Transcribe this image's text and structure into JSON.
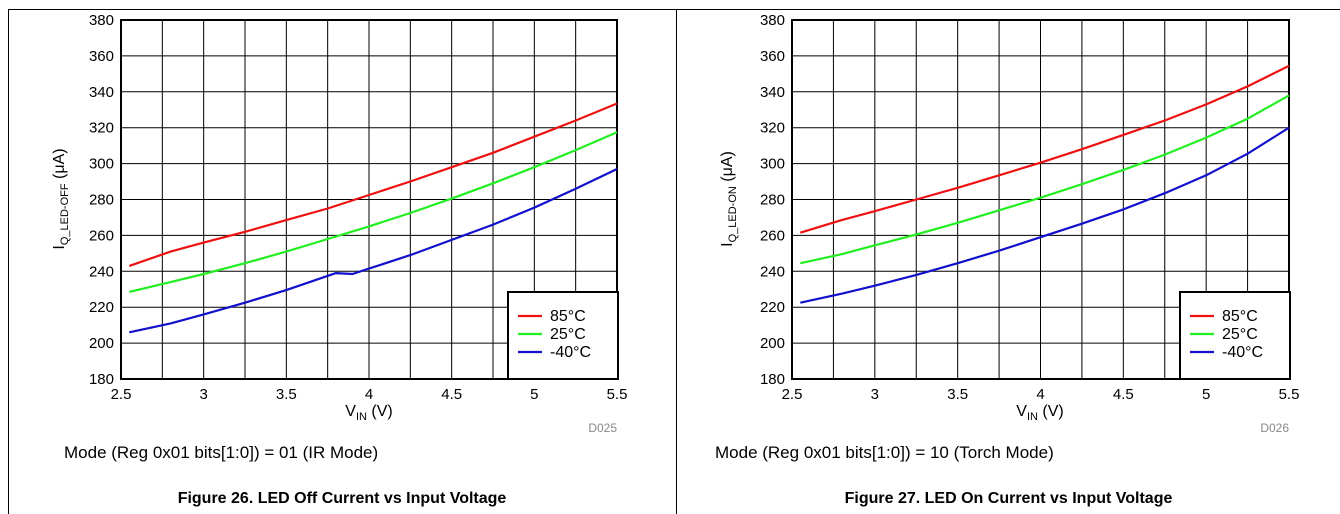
{
  "colors": {
    "red": "#ee1111",
    "green": "#22ee22",
    "blue": "#1111cc",
    "grid": "#000000"
  },
  "charts": [
    {
      "mode_text": "Mode (Reg 0x01 bits[1:0]) = 01 (IR Mode)",
      "caption": "Figure 26. LED Off Current vs Input Voltage",
      "code": "D025",
      "chart_data": {
        "type": "line",
        "xlabel_main": "V",
        "xlabel_sub": "IN",
        "xlabel_unit": " (V)",
        "ylabel_main": "I",
        "ylabel_sub": "Q_LED-OFF",
        "ylabel_unit": " (μA)",
        "xlim": [
          2.5,
          5.5
        ],
        "ylim": [
          180,
          380
        ],
        "x_ticks": [
          2.5,
          3,
          3.5,
          4,
          4.5,
          5,
          5.5
        ],
        "x_tick_labels": [
          "2.5",
          "3",
          "3.5",
          "4",
          "4.5",
          "5",
          "5.5"
        ],
        "y_ticks": [
          180,
          200,
          220,
          240,
          260,
          280,
          300,
          320,
          340,
          360,
          380
        ],
        "y_tick_labels": [
          "180",
          "200",
          "220",
          "240",
          "260",
          "280",
          "300",
          "320",
          "340",
          "360",
          "380"
        ],
        "grid_x": [
          2.5,
          2.75,
          3,
          3.25,
          3.5,
          3.75,
          4,
          4.25,
          4.5,
          4.75,
          5,
          5.25,
          5.5
        ],
        "grid_y": [
          180,
          200,
          220,
          240,
          260,
          280,
          300,
          320,
          340,
          360,
          380
        ],
        "legend_position": "bottom-right",
        "series": [
          {
            "name": "85°C",
            "color": "#ee1111",
            "points": [
              [
                2.55,
                243
              ],
              [
                2.8,
                251
              ],
              [
                3,
                256
              ],
              [
                3.25,
                262
              ],
              [
                3.5,
                268.5
              ],
              [
                3.75,
                275
              ],
              [
                4,
                282.5
              ],
              [
                4.25,
                290
              ],
              [
                4.5,
                298
              ],
              [
                4.75,
                306
              ],
              [
                5,
                315
              ],
              [
                5.25,
                324
              ],
              [
                5.5,
                333.5
              ]
            ]
          },
          {
            "name": "25°C",
            "color": "#22ee22",
            "points": [
              [
                2.55,
                228.5
              ],
              [
                2.8,
                234
              ],
              [
                3,
                238.5
              ],
              [
                3.25,
                244.5
              ],
              [
                3.5,
                251
              ],
              [
                3.75,
                258
              ],
              [
                4,
                265
              ],
              [
                4.25,
                272.5
              ],
              [
                4.5,
                280.5
              ],
              [
                4.75,
                289
              ],
              [
                5,
                298
              ],
              [
                5.25,
                307.5
              ],
              [
                5.5,
                317.5
              ]
            ]
          },
          {
            "name": "-40°C",
            "color": "#1111cc",
            "points": [
              [
                2.55,
                206
              ],
              [
                2.8,
                211
              ],
              [
                3,
                216
              ],
              [
                3.25,
                222.5
              ],
              [
                3.5,
                229.5
              ],
              [
                3.8,
                239
              ],
              [
                3.9,
                238.5
              ],
              [
                4,
                241.5
              ],
              [
                4.25,
                249
              ],
              [
                4.5,
                257.5
              ],
              [
                4.75,
                266
              ],
              [
                5,
                275.5
              ],
              [
                5.25,
                286
              ],
              [
                5.5,
                297
              ]
            ]
          }
        ]
      }
    },
    {
      "mode_text": "Mode (Reg 0x01 bits[1:0]) = 10 (Torch Mode)",
      "caption": "Figure 27. LED On Current vs Input Voltage",
      "code": "D026",
      "chart_data": {
        "type": "line",
        "xlabel_main": "V",
        "xlabel_sub": "IN",
        "xlabel_unit": " (V)",
        "ylabel_main": "I",
        "ylabel_sub": "Q_LED-ON",
        "ylabel_unit": " (μA)",
        "xlim": [
          2.5,
          5.5
        ],
        "ylim": [
          180,
          380
        ],
        "x_ticks": [
          2.5,
          3,
          3.5,
          4,
          4.5,
          5,
          5.5
        ],
        "x_tick_labels": [
          "2.5",
          "3",
          "3.5",
          "4",
          "4.5",
          "5",
          "5.5"
        ],
        "y_ticks": [
          180,
          200,
          220,
          240,
          260,
          280,
          300,
          320,
          340,
          360,
          380
        ],
        "y_tick_labels": [
          "180",
          "200",
          "220",
          "240",
          "260",
          "280",
          "300",
          "320",
          "340",
          "360",
          "380"
        ],
        "grid_x": [
          2.5,
          2.75,
          3,
          3.25,
          3.5,
          3.75,
          4,
          4.25,
          4.5,
          4.75,
          5,
          5.25,
          5.5
        ],
        "grid_y": [
          180,
          200,
          220,
          240,
          260,
          280,
          300,
          320,
          340,
          360,
          380
        ],
        "legend_position": "bottom-right",
        "series": [
          {
            "name": "85°C",
            "color": "#ee1111",
            "points": [
              [
                2.55,
                261.5
              ],
              [
                2.8,
                268.5
              ],
              [
                3,
                273.5
              ],
              [
                3.25,
                280
              ],
              [
                3.5,
                286.5
              ],
              [
                3.75,
                293.5
              ],
              [
                4,
                300.5
              ],
              [
                4.25,
                308
              ],
              [
                4.5,
                316
              ],
              [
                4.75,
                324
              ],
              [
                5,
                333
              ],
              [
                5.25,
                343
              ],
              [
                5.5,
                354.5
              ]
            ]
          },
          {
            "name": "25°C",
            "color": "#22ee22",
            "points": [
              [
                2.55,
                244.5
              ],
              [
                2.8,
                249.5
              ],
              [
                3,
                254.5
              ],
              [
                3.25,
                260.5
              ],
              [
                3.5,
                267
              ],
              [
                3.75,
                274
              ],
              [
                4,
                281
              ],
              [
                4.25,
                288.5
              ],
              [
                4.5,
                296.5
              ],
              [
                4.75,
                305
              ],
              [
                5,
                314.5
              ],
              [
                5.25,
                325
              ],
              [
                5.5,
                338
              ]
            ]
          },
          {
            "name": "-40°C",
            "color": "#1111cc",
            "points": [
              [
                2.55,
                222.5
              ],
              [
                2.8,
                227.5
              ],
              [
                3,
                232
              ],
              [
                3.25,
                238
              ],
              [
                3.5,
                244.5
              ],
              [
                3.75,
                251.5
              ],
              [
                4,
                259
              ],
              [
                4.25,
                266.5
              ],
              [
                4.5,
                274.5
              ],
              [
                4.75,
                283.5
              ],
              [
                5,
                293.5
              ],
              [
                5.25,
                305.5
              ],
              [
                5.5,
                320
              ]
            ]
          }
        ]
      }
    }
  ]
}
